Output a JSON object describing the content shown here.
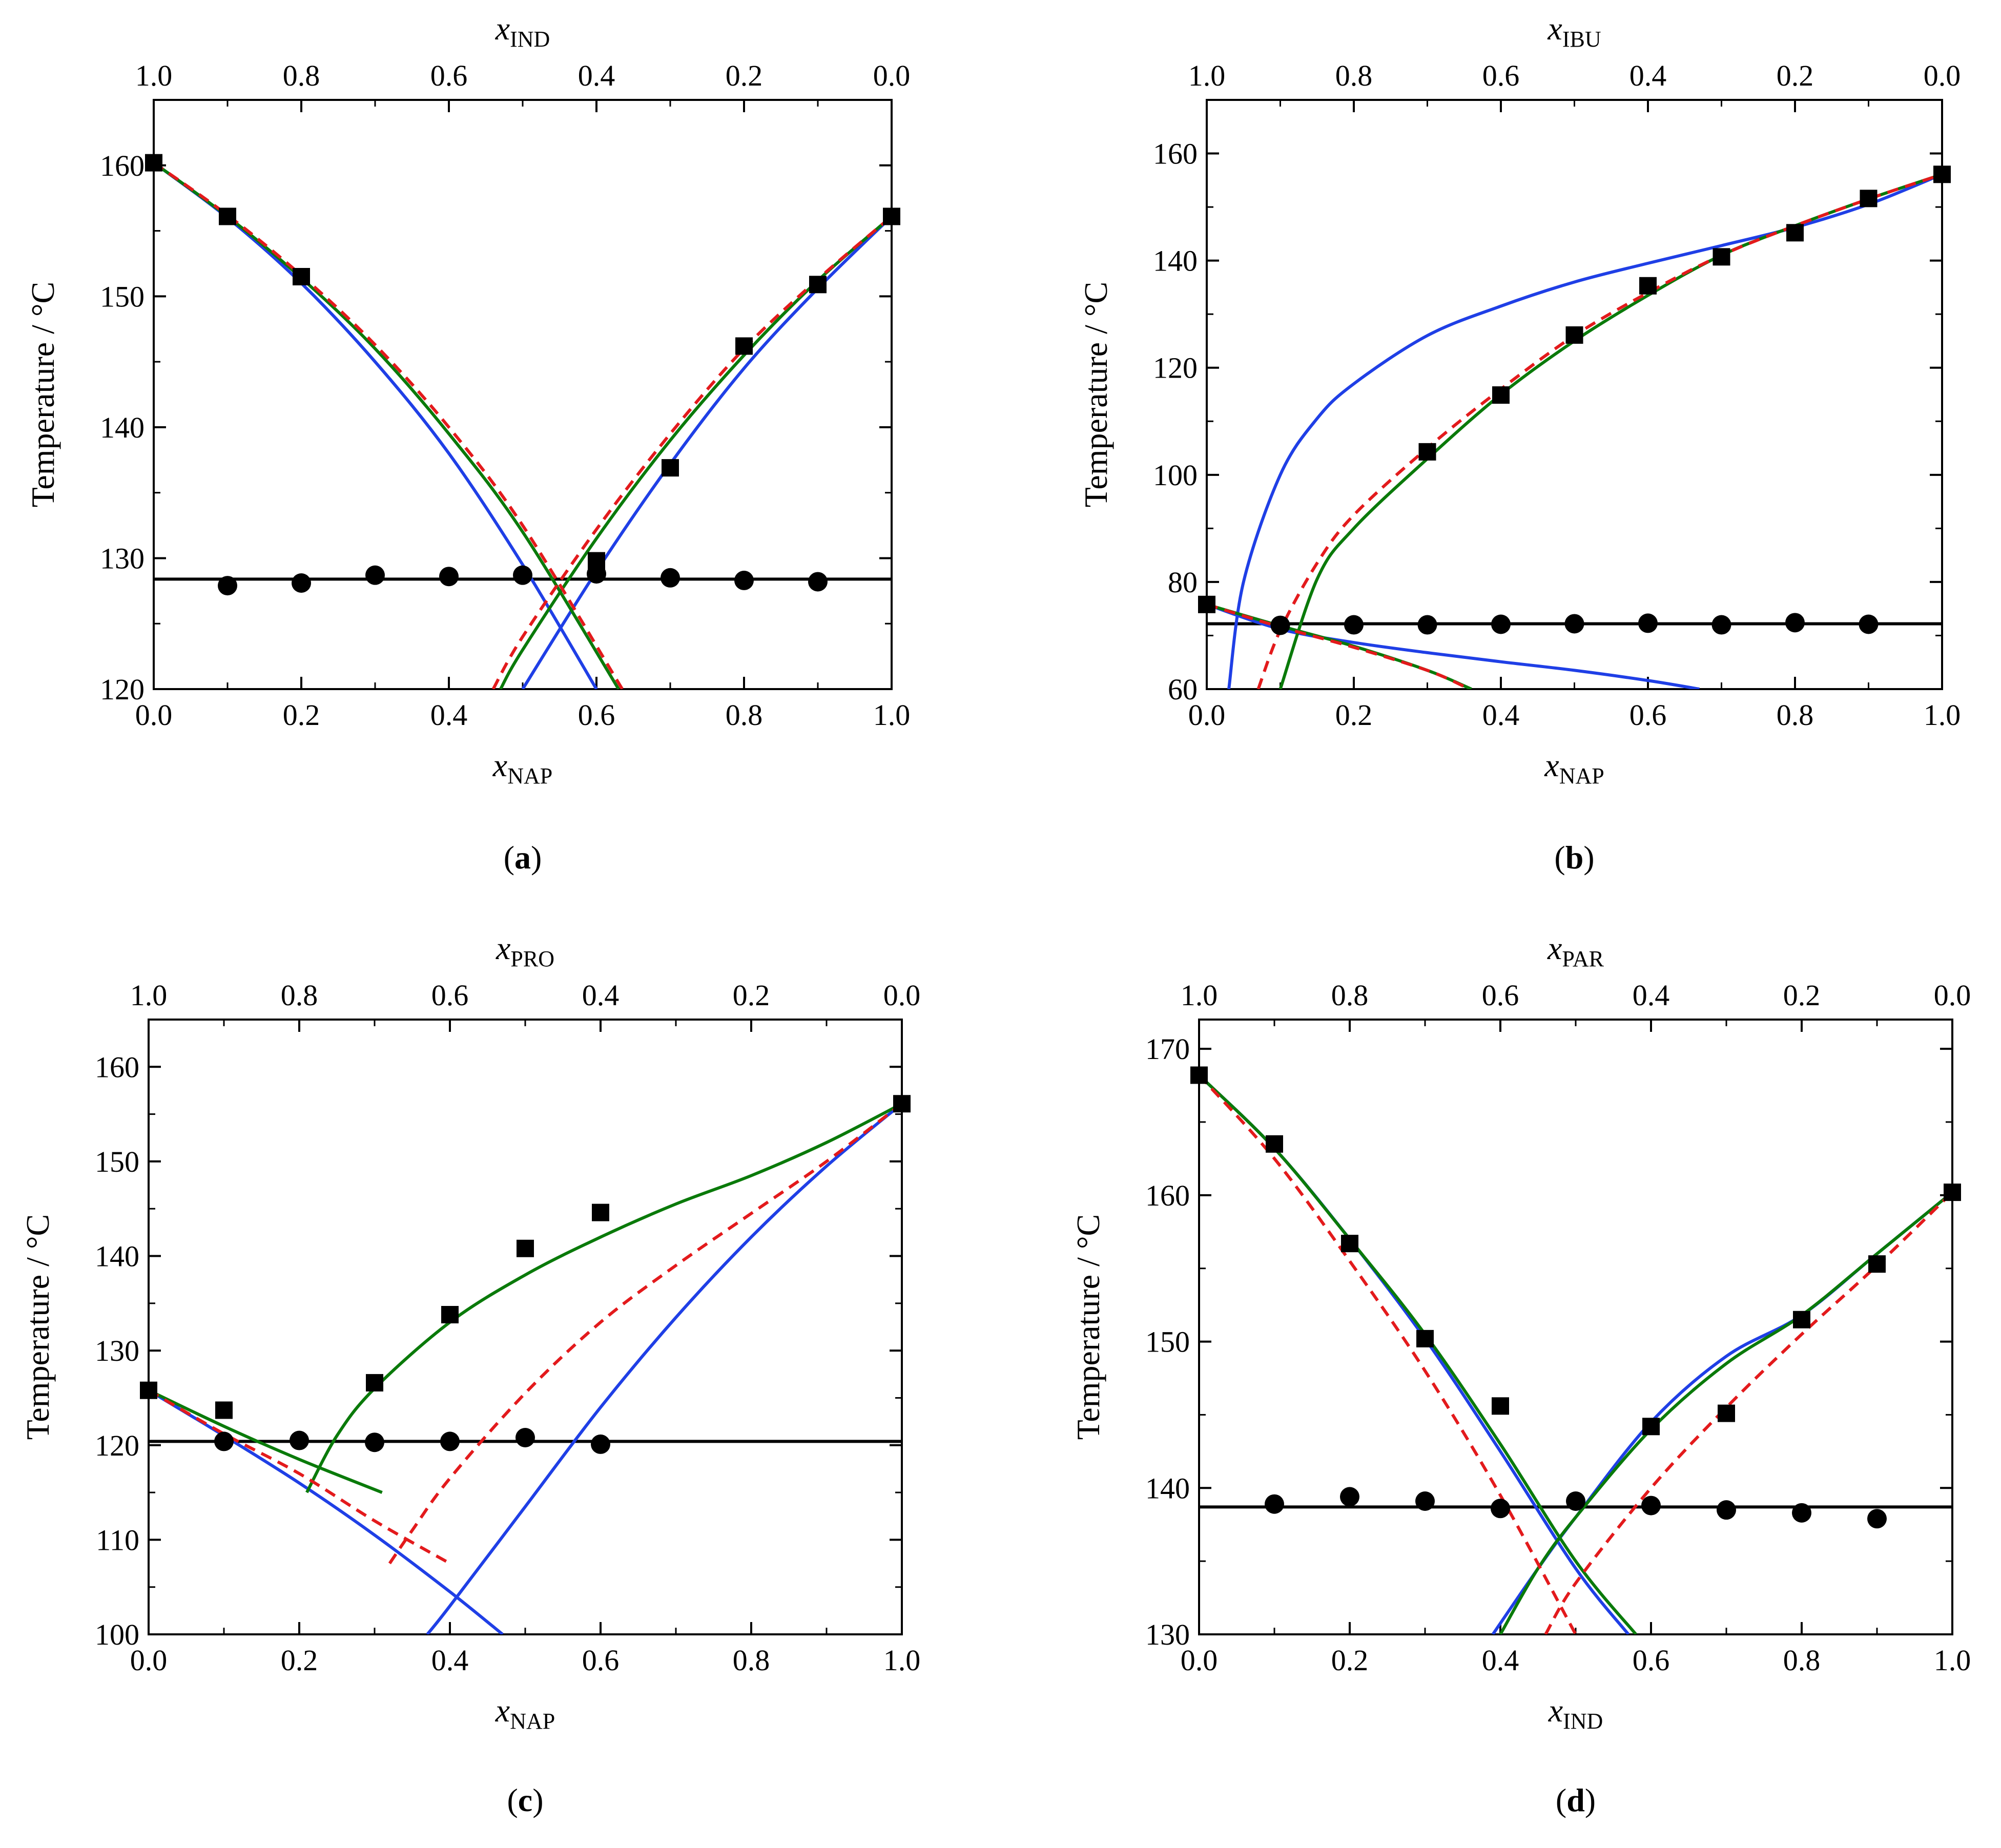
{
  "colors": {
    "axis": "#000000",
    "experimental": "#000000",
    "blue_model": "#1f3fe6",
    "green_model": "#0a7a0a",
    "red_model": "#e31a1c",
    "eutectic_line": "#000000"
  },
  "chart_data": [
    {
      "type": "scatter",
      "panel_label": "a",
      "title": "",
      "xlabel": {
        "main": "x",
        "sub": "NAP"
      },
      "x2label": {
        "main": "x",
        "sub": "IND"
      },
      "ylabel": "Temperature / °C",
      "xlim": [
        0,
        1
      ],
      "ylim": [
        120,
        165
      ],
      "xticks": [
        0.0,
        0.2,
        0.4,
        0.6,
        0.8,
        1.0
      ],
      "xtick_labels": [
        "0.0",
        "0.2",
        "0.4",
        "0.6",
        "0.8",
        "1.0"
      ],
      "x2tick_labels": [
        "1.0",
        "0.8",
        "0.6",
        "0.4",
        "0.2",
        "0.0"
      ],
      "yticks": [
        120,
        130,
        140,
        150,
        160
      ],
      "ytick_labels": [
        "120",
        "130",
        "140",
        "150",
        "160"
      ],
      "series": [
        {
          "name": "liquidus experimental",
          "marker": "square",
          "x": [
            0.0,
            0.1,
            0.2,
            0.6,
            0.7,
            0.8,
            0.9,
            1.0
          ],
          "y": [
            160.2,
            156.1,
            151.5,
            129.8,
            136.9,
            146.2,
            150.9,
            156.1
          ]
        },
        {
          "name": "solidus experimental",
          "marker": "circle",
          "x": [
            0.1,
            0.2,
            0.3,
            0.4,
            0.5,
            0.6,
            0.7,
            0.8,
            0.9
          ],
          "y": [
            127.9,
            128.1,
            128.7,
            128.6,
            128.7,
            128.8,
            128.5,
            128.3,
            128.2
          ]
        },
        {
          "name": "eutectic line",
          "style": "solid-black",
          "y": 128.4
        },
        {
          "name": "blue model left branch",
          "style": "blue",
          "x": [
            0.0,
            0.1,
            0.2,
            0.3,
            0.4,
            0.5,
            0.6
          ],
          "y": [
            160.2,
            156.0,
            151.0,
            145.0,
            138.0,
            129.5,
            120.0
          ]
        },
        {
          "name": "blue model right branch",
          "style": "blue",
          "x": [
            0.5,
            0.6,
            0.7,
            0.8,
            0.9,
            1.0
          ],
          "y": [
            120.0,
            129.0,
            137.2,
            144.5,
            150.6,
            156.1
          ]
        },
        {
          "name": "green model left branch",
          "style": "green",
          "x": [
            0.0,
            0.1,
            0.2,
            0.3,
            0.4,
            0.5,
            0.63
          ],
          "y": [
            160.2,
            156.1,
            151.4,
            146.0,
            139.5,
            132.0,
            120.0
          ]
        },
        {
          "name": "green model right branch",
          "style": "green",
          "x": [
            0.47,
            0.5,
            0.6,
            0.7,
            0.8,
            0.9,
            1.0
          ],
          "y": [
            120.0,
            123.0,
            131.5,
            139.0,
            145.5,
            151.2,
            156.1
          ]
        },
        {
          "name": "red model left branch",
          "style": "red-dashed",
          "x": [
            0.0,
            0.1,
            0.2,
            0.3,
            0.4,
            0.5,
            0.635
          ],
          "y": [
            160.2,
            156.2,
            151.6,
            146.3,
            140.0,
            132.5,
            120.0
          ]
        },
        {
          "name": "red model right branch",
          "style": "red-dashed",
          "x": [
            0.46,
            0.5,
            0.6,
            0.7,
            0.8,
            0.9,
            1.0
          ],
          "y": [
            120.0,
            124.0,
            132.2,
            139.5,
            146.0,
            151.3,
            156.1
          ]
        }
      ]
    },
    {
      "type": "scatter",
      "panel_label": "b",
      "title": "",
      "xlabel": {
        "main": "x",
        "sub": "NAP"
      },
      "x2label": {
        "main": "x",
        "sub": "IBU"
      },
      "ylabel": "Temperature / °C",
      "xlim": [
        0,
        1
      ],
      "ylim": [
        60,
        170
      ],
      "xticks": [
        0.0,
        0.2,
        0.4,
        0.6,
        0.8,
        1.0
      ],
      "xtick_labels": [
        "0.0",
        "0.2",
        "0.4",
        "0.6",
        "0.8",
        "1.0"
      ],
      "x2tick_labels": [
        "1.0",
        "0.8",
        "0.6",
        "0.4",
        "0.2",
        "0.0"
      ],
      "yticks": [
        60,
        80,
        100,
        120,
        140,
        160
      ],
      "ytick_labels": [
        "60",
        "80",
        "100",
        "120",
        "140",
        "160"
      ],
      "series": [
        {
          "name": "liquidus experimental",
          "marker": "square",
          "x": [
            0.0,
            0.3,
            0.4,
            0.5,
            0.6,
            0.7,
            0.8,
            0.9,
            1.0
          ],
          "y": [
            75.8,
            104.3,
            114.9,
            126.1,
            135.3,
            140.7,
            145.2,
            151.6,
            156.1
          ]
        },
        {
          "name": "solidus experimental",
          "marker": "circle",
          "x": [
            0.1,
            0.2,
            0.3,
            0.4,
            0.5,
            0.6,
            0.7,
            0.8,
            0.9
          ],
          "y": [
            71.9,
            72.0,
            72.0,
            72.1,
            72.2,
            72.3,
            72.0,
            72.4,
            72.1
          ]
        },
        {
          "name": "eutectic line",
          "style": "solid-black",
          "y": 72.2
        },
        {
          "name": "blue model liquidus NAP",
          "style": "blue",
          "x": [
            0.03,
            0.05,
            0.1,
            0.15,
            0.2,
            0.3,
            0.4,
            0.5,
            0.6,
            0.7,
            0.8,
            0.9,
            1.0
          ],
          "y": [
            60.0,
            80.0,
            100.0,
            110.5,
            117.0,
            126.0,
            131.5,
            136.0,
            139.5,
            142.8,
            146.2,
            150.5,
            156.1
          ]
        },
        {
          "name": "blue model liquidus IBU",
          "style": "blue",
          "x": [
            0.0,
            0.1,
            0.2,
            0.3,
            0.4,
            0.5,
            0.6,
            0.67
          ],
          "y": [
            75.8,
            71.2,
            68.7,
            66.8,
            65.1,
            63.5,
            61.6,
            60.0
          ]
        },
        {
          "name": "green model liquidus NAP",
          "style": "green",
          "x": [
            0.1,
            0.15,
            0.2,
            0.3,
            0.4,
            0.5,
            0.6,
            0.7,
            0.8,
            0.9,
            1.0
          ],
          "y": [
            60.0,
            80.5,
            90.0,
            103.0,
            115.0,
            125.0,
            133.5,
            141.0,
            146.5,
            151.5,
            156.1
          ]
        },
        {
          "name": "green model liquidus IBU",
          "style": "green",
          "x": [
            0.0,
            0.1,
            0.2,
            0.3,
            0.36
          ],
          "y": [
            75.8,
            71.8,
            68.0,
            63.5,
            60.0
          ]
        },
        {
          "name": "red model liquidus NAP",
          "style": "red-dashed",
          "x": [
            0.07,
            0.1,
            0.15,
            0.2,
            0.3,
            0.4,
            0.5,
            0.6,
            0.7,
            0.8,
            0.9,
            1.0
          ],
          "y": [
            60.0,
            71.0,
            83.5,
            92.5,
            105.0,
            116.0,
            126.0,
            134.0,
            141.0,
            146.5,
            151.5,
            156.1
          ]
        },
        {
          "name": "red model liquidus IBU",
          "style": "red-dashed",
          "x": [
            0.0,
            0.1,
            0.2,
            0.3,
            0.35
          ],
          "y": [
            75.8,
            71.6,
            67.8,
            63.5,
            60.5
          ]
        }
      ]
    },
    {
      "type": "scatter",
      "panel_label": "c",
      "title": "",
      "xlabel": {
        "main": "x",
        "sub": "NAP"
      },
      "x2label": {
        "main": "x",
        "sub": "PRO"
      },
      "ylabel": "Temperature / °C",
      "xlim": [
        0,
        1
      ],
      "ylim": [
        100,
        165
      ],
      "xticks": [
        0.0,
        0.2,
        0.4,
        0.6,
        0.8,
        1.0
      ],
      "xtick_labels": [
        "0.0",
        "0.2",
        "0.4",
        "0.6",
        "0.8",
        "1.0"
      ],
      "x2tick_labels": [
        "1.0",
        "0.8",
        "0.6",
        "0.4",
        "0.2",
        "0.0"
      ],
      "yticks": [
        100,
        110,
        120,
        130,
        140,
        150,
        160
      ],
      "ytick_labels": [
        "100",
        "110",
        "120",
        "130",
        "140",
        "150",
        "160"
      ],
      "series": [
        {
          "name": "liquidus experimental",
          "marker": "square",
          "x": [
            0.0,
            0.1,
            0.3,
            0.4,
            0.5,
            0.6,
            1.0
          ],
          "y": [
            125.8,
            123.7,
            126.6,
            133.8,
            140.8,
            144.6,
            156.1
          ]
        },
        {
          "name": "solidus experimental",
          "marker": "circle",
          "x": [
            0.1,
            0.2,
            0.3,
            0.4,
            0.5,
            0.6
          ],
          "y": [
            120.4,
            120.5,
            120.3,
            120.4,
            120.8,
            120.1
          ]
        },
        {
          "name": "eutectic line",
          "style": "solid-black",
          "y": 120.4
        },
        {
          "name": "blue model liquidus PRO",
          "style": "blue",
          "x": [
            0.0,
            0.1,
            0.2,
            0.3,
            0.4,
            0.47
          ],
          "y": [
            125.8,
            121.0,
            116.0,
            110.5,
            104.5,
            100.0
          ]
        },
        {
          "name": "blue model liquidus NAP",
          "style": "blue",
          "x": [
            0.37,
            0.4,
            0.5,
            0.6,
            0.7,
            0.8,
            0.9,
            1.0
          ],
          "y": [
            100.0,
            103.0,
            113.5,
            124.0,
            133.5,
            142.0,
            149.5,
            156.1
          ]
        },
        {
          "name": "green model liquidus PRO",
          "style": "green",
          "x": [
            0.0,
            0.1,
            0.2,
            0.31
          ],
          "y": [
            125.8,
            122.0,
            118.5,
            115.0
          ]
        },
        {
          "name": "green model liquidus NAP",
          "style": "green",
          "x": [
            0.21,
            0.25,
            0.3,
            0.4,
            0.5,
            0.6,
            0.7,
            0.8,
            0.9,
            1.0
          ],
          "y": [
            115.0,
            121.0,
            126.0,
            133.0,
            138.0,
            142.0,
            145.5,
            148.5,
            152.0,
            156.1
          ]
        },
        {
          "name": "red model liquidus PRO",
          "style": "red-dashed",
          "x": [
            0.0,
            0.1,
            0.2,
            0.3,
            0.4
          ],
          "y": [
            125.8,
            121.2,
            117.0,
            112.0,
            107.5
          ]
        },
        {
          "name": "red model liquidus NAP",
          "style": "red-dashed",
          "x": [
            0.32,
            0.35,
            0.4,
            0.5,
            0.6,
            0.7,
            0.8,
            0.9,
            1.0
          ],
          "y": [
            107.5,
            111.0,
            116.5,
            125.5,
            133.0,
            139.0,
            144.5,
            150.0,
            156.1
          ]
        }
      ]
    },
    {
      "type": "scatter",
      "panel_label": "d",
      "title": "",
      "xlabel": {
        "main": "x",
        "sub": "IND"
      },
      "x2label": {
        "main": "x",
        "sub": "PAR"
      },
      "ylabel": "Temperature / °C",
      "xlim": [
        0,
        1
      ],
      "ylim": [
        130,
        172
      ],
      "xticks": [
        0.0,
        0.2,
        0.4,
        0.6,
        0.8,
        1.0
      ],
      "xtick_labels": [
        "0.0",
        "0.2",
        "0.4",
        "0.6",
        "0.8",
        "1.0"
      ],
      "x2tick_labels": [
        "1.0",
        "0.8",
        "0.6",
        "0.4",
        "0.2",
        "0.0"
      ],
      "yticks": [
        130,
        140,
        150,
        160,
        170
      ],
      "ytick_labels": [
        "130",
        "140",
        "150",
        "160",
        "170"
      ],
      "series": [
        {
          "name": "liquidus experimental",
          "marker": "square",
          "x": [
            0.0,
            0.1,
            0.2,
            0.3,
            0.4,
            0.6,
            0.7,
            0.8,
            0.9,
            1.0
          ],
          "y": [
            168.2,
            163.5,
            156.7,
            150.2,
            145.6,
            144.2,
            145.1,
            151.5,
            155.3,
            160.2
          ]
        },
        {
          "name": "solidus experimental",
          "marker": "circle",
          "x": [
            0.1,
            0.2,
            0.3,
            0.4,
            0.5,
            0.6,
            0.7,
            0.8,
            0.9
          ],
          "y": [
            138.9,
            139.4,
            139.1,
            138.6,
            139.1,
            138.8,
            138.5,
            138.3,
            137.9
          ]
        },
        {
          "name": "eutectic line",
          "style": "solid-black",
          "y": 138.7
        },
        {
          "name": "blue model liquidus PAR",
          "style": "blue",
          "x": [
            0.0,
            0.1,
            0.2,
            0.3,
            0.4,
            0.5,
            0.57
          ],
          "y": [
            168.2,
            163.2,
            157.0,
            150.2,
            142.5,
            134.5,
            130.0
          ]
        },
        {
          "name": "blue model liquidus IND",
          "style": "blue",
          "x": [
            0.39,
            0.45,
            0.5,
            0.6,
            0.7,
            0.8,
            0.9,
            1.0
          ],
          "y": [
            130.0,
            134.5,
            138.0,
            144.5,
            149.0,
            151.8,
            156.0,
            160.2
          ]
        },
        {
          "name": "green model liquidus PAR",
          "style": "green",
          "x": [
            0.0,
            0.1,
            0.2,
            0.3,
            0.4,
            0.5,
            0.58
          ],
          "y": [
            168.2,
            163.2,
            157.0,
            150.5,
            143.0,
            135.0,
            130.0
          ]
        },
        {
          "name": "green model liquidus IND",
          "style": "green",
          "x": [
            0.4,
            0.45,
            0.5,
            0.6,
            0.7,
            0.8,
            0.9,
            1.0
          ],
          "y": [
            130.0,
            134.5,
            138.0,
            144.0,
            148.5,
            151.8,
            156.0,
            160.2
          ]
        },
        {
          "name": "red model liquidus PAR",
          "style": "red-dashed",
          "x": [
            0.0,
            0.1,
            0.2,
            0.3,
            0.4,
            0.5
          ],
          "y": [
            168.2,
            162.5,
            155.5,
            148.0,
            139.5,
            130.0
          ]
        },
        {
          "name": "red model liquidus IND",
          "style": "red-dashed",
          "x": [
            0.46,
            0.5,
            0.6,
            0.7,
            0.8,
            0.9,
            1.0
          ],
          "y": [
            130.0,
            133.5,
            140.0,
            145.5,
            150.5,
            155.2,
            160.2
          ]
        }
      ]
    }
  ]
}
